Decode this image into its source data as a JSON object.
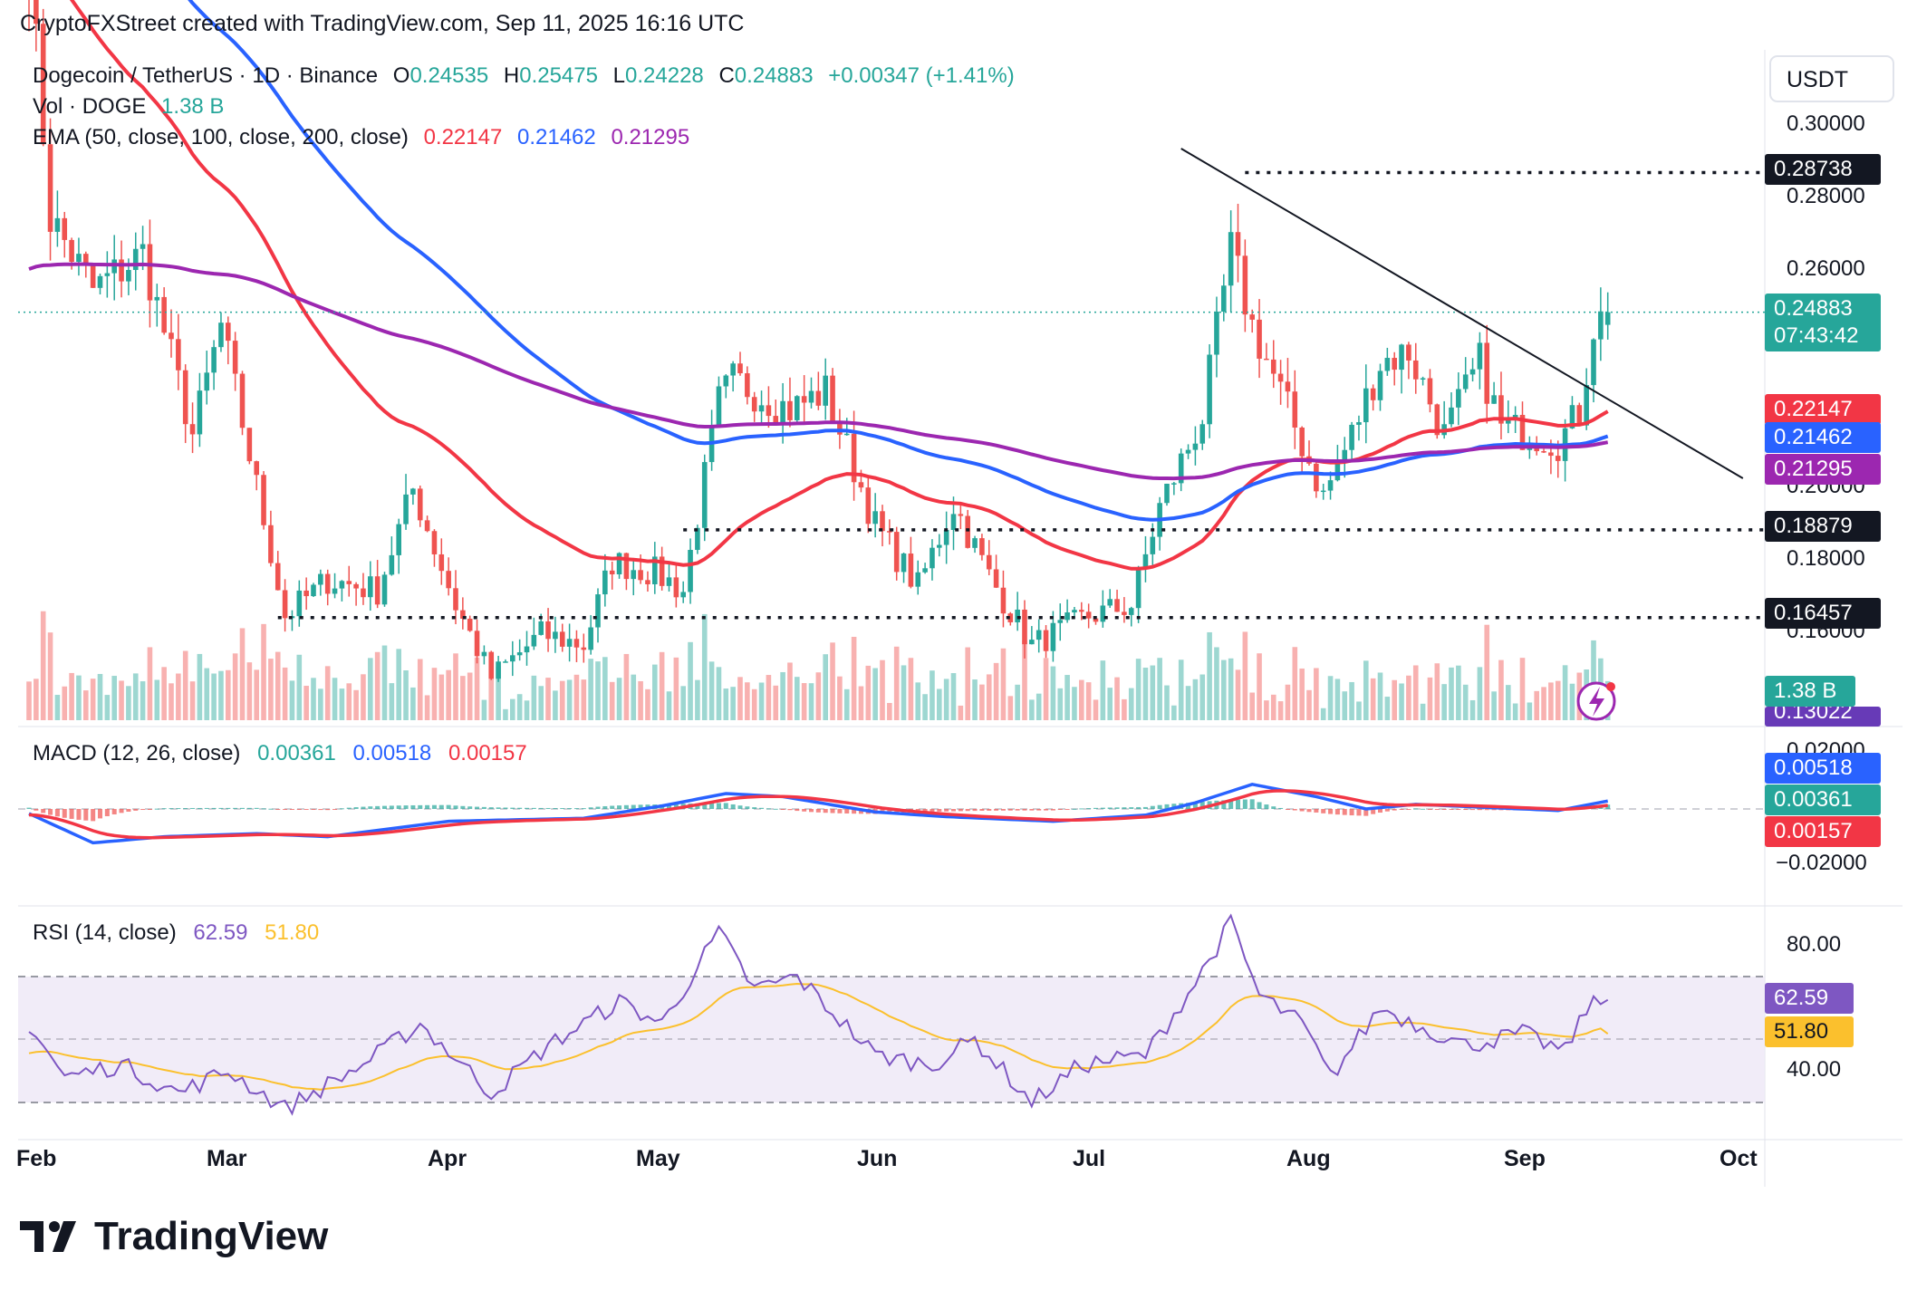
{
  "header": {
    "caption": "CryptoFXStreet created with TradingView.com, Sep 11, 2025 16:16 UTC"
  },
  "legend": {
    "symbol": "Dogecoin / TetherUS · 1D · Binance",
    "o_label": "O",
    "o_value": "0.24535",
    "h_label": "H",
    "h_value": "0.25475",
    "l_label": "L",
    "l_value": "0.24228",
    "c_label": "C",
    "c_value": "0.24883",
    "change": "+0.00347 (+1.41%)",
    "vol_label": "Vol · DOGE",
    "vol_value": "1.38 B",
    "ema_label": "EMA (50, close, 100, close, 200, close)",
    "ema50": "0.22147",
    "ema100": "0.21462",
    "ema200": "0.21295"
  },
  "macd_legend": {
    "label": "MACD (12, 26, close)",
    "hist": "0.00361",
    "macd": "0.00518",
    "signal": "0.00157"
  },
  "rsi_legend": {
    "label": "RSI (14, close)",
    "rsi": "62.59",
    "ma": "51.80"
  },
  "price_axis": {
    "currency": "USDT",
    "ticks": [
      "0.30000",
      "0.28000",
      "0.26000",
      "0.20000",
      "0.18000",
      "0.16000"
    ],
    "macd_ticks": [
      "0.02000",
      "−0.02000"
    ],
    "rsi_ticks": [
      "80.00",
      "40.00"
    ]
  },
  "labels": {
    "level_high": "0.28738",
    "last_price": "0.24883",
    "countdown": "07:43:42",
    "ema50": "0.22147",
    "ema100": "0.21462",
    "ema200": "0.21295",
    "level_mid": "0.18879",
    "level_low": "0.16457",
    "volume": "1.38 B",
    "volume_ma": "0.13022",
    "macd": "0.00518",
    "hist": "0.00361",
    "signal": "0.00157",
    "rsi": "62.59",
    "rsi_ma": "51.80"
  },
  "time_axis": [
    "Feb",
    "Mar",
    "Apr",
    "May",
    "Jun",
    "Jul",
    "Aug",
    "Sep",
    "Oct"
  ],
  "colors": {
    "up": "#26a69a",
    "down": "#ef5350",
    "ema50": "#f23645",
    "ema100": "#2962ff",
    "ema200": "#9c27b0",
    "rsi": "#7e57c2",
    "rsi_ma": "#fbc02d"
  },
  "footer": {
    "brand": "TradingView"
  },
  "chart_data": {
    "type": "candlestick",
    "title": "Dogecoin / TetherUS · 1D · Binance",
    "ylim": [
      0.13,
      0.31
    ],
    "key_levels": [
      0.28738,
      0.18879,
      0.16457
    ],
    "trendline": {
      "from": [
        "2025-07-13",
        0.294
      ],
      "to": [
        "2025-09-30",
        0.203
      ]
    },
    "anchors": [
      [
        "2025-02-01",
        0.345
      ],
      [
        "2025-02-04",
        0.275
      ],
      [
        "2025-02-10",
        0.255
      ],
      [
        "2025-02-17",
        0.265
      ],
      [
        "2025-02-24",
        0.215
      ],
      [
        "2025-02-28",
        0.245
      ],
      [
        "2025-03-09",
        0.165
      ],
      [
        "2025-03-15",
        0.175
      ],
      [
        "2025-03-22",
        0.172
      ],
      [
        "2025-03-27",
        0.2
      ],
      [
        "2025-04-02",
        0.168
      ],
      [
        "2025-04-07",
        0.148
      ],
      [
        "2025-04-14",
        0.16
      ],
      [
        "2025-04-20",
        0.157
      ],
      [
        "2025-04-24",
        0.18
      ],
      [
        "2025-04-30",
        0.177
      ],
      [
        "2025-05-04",
        0.172
      ],
      [
        "2025-05-09",
        0.224
      ],
      [
        "2025-05-11",
        0.23
      ],
      [
        "2025-05-19",
        0.222
      ],
      [
        "2025-05-24",
        0.227
      ],
      [
        "2025-05-31",
        0.19
      ],
      [
        "2025-06-06",
        0.173
      ],
      [
        "2025-06-11",
        0.196
      ],
      [
        "2025-06-16",
        0.176
      ],
      [
        "2025-06-22",
        0.157
      ],
      [
        "2025-06-30",
        0.165
      ],
      [
        "2025-07-06",
        0.168
      ],
      [
        "2025-07-10",
        0.195
      ],
      [
        "2025-07-16",
        0.22
      ],
      [
        "2025-07-20",
        0.266
      ],
      [
        "2025-07-23",
        0.245
      ],
      [
        "2025-07-28",
        0.222
      ],
      [
        "2025-08-02",
        0.198
      ],
      [
        "2025-08-06",
        0.215
      ],
      [
        "2025-08-10",
        0.235
      ],
      [
        "2025-08-14",
        0.238
      ],
      [
        "2025-08-19",
        0.215
      ],
      [
        "2025-08-24",
        0.235
      ],
      [
        "2025-08-27",
        0.217
      ],
      [
        "2025-09-01",
        0.215
      ],
      [
        "2025-09-04",
        0.213
      ],
      [
        "2025-09-07",
        0.221
      ],
      [
        "2025-09-09",
        0.245
      ],
      [
        "2025-09-11",
        0.24883
      ]
    ],
    "macd_anchors": [
      [
        "2025-02-01",
        -0.003
      ],
      [
        "2025-02-10",
        -0.022
      ],
      [
        "2025-02-20",
        -0.018
      ],
      [
        "2025-03-05",
        -0.016
      ],
      [
        "2025-03-15",
        -0.018
      ],
      [
        "2025-04-01",
        -0.008
      ],
      [
        "2025-04-20",
        -0.006
      ],
      [
        "2025-05-01",
        0.002
      ],
      [
        "2025-05-10",
        0.01
      ],
      [
        "2025-05-18",
        0.008
      ],
      [
        "2025-05-31",
        -0.002
      ],
      [
        "2025-06-10",
        -0.005
      ],
      [
        "2025-06-25",
        -0.008
      ],
      [
        "2025-07-08",
        -0.004
      ],
      [
        "2025-07-15",
        0.004
      ],
      [
        "2025-07-23",
        0.016
      ],
      [
        "2025-08-01",
        0.008
      ],
      [
        "2025-08-08",
        0.0
      ],
      [
        "2025-08-15",
        0.003
      ],
      [
        "2025-08-25",
        0.001
      ],
      [
        "2025-09-04",
        -0.001
      ],
      [
        "2025-09-11",
        0.00518
      ]
    ],
    "rsi_anchors": [
      [
        "2025-02-01",
        55
      ],
      [
        "2025-02-06",
        38
      ],
      [
        "2025-02-14",
        42
      ],
      [
        "2025-02-22",
        33
      ],
      [
        "2025-03-01",
        40
      ],
      [
        "2025-03-09",
        28
      ],
      [
        "2025-03-20",
        42
      ],
      [
        "2025-03-28",
        55
      ],
      [
        "2025-04-07",
        33
      ],
      [
        "2025-04-15",
        48
      ],
      [
        "2025-04-25",
        62
      ],
      [
        "2025-05-01",
        55
      ],
      [
        "2025-05-09",
        84
      ],
      [
        "2025-05-14",
        66
      ],
      [
        "2025-05-20",
        70
      ],
      [
        "2025-05-31",
        45
      ],
      [
        "2025-06-08",
        42
      ],
      [
        "2025-06-14",
        50
      ],
      [
        "2025-06-22",
        30
      ],
      [
        "2025-06-29",
        42
      ],
      [
        "2025-07-08",
        45
      ],
      [
        "2025-07-15",
        68
      ],
      [
        "2025-07-20",
        87
      ],
      [
        "2025-07-24",
        64
      ],
      [
        "2025-07-30",
        55
      ],
      [
        "2025-08-03",
        38
      ],
      [
        "2025-08-10",
        60
      ],
      [
        "2025-08-15",
        55
      ],
      [
        "2025-08-22",
        48
      ],
      [
        "2025-08-30",
        52
      ],
      [
        "2025-09-05",
        46
      ],
      [
        "2025-09-08",
        60
      ],
      [
        "2025-09-11",
        62.59
      ]
    ]
  }
}
